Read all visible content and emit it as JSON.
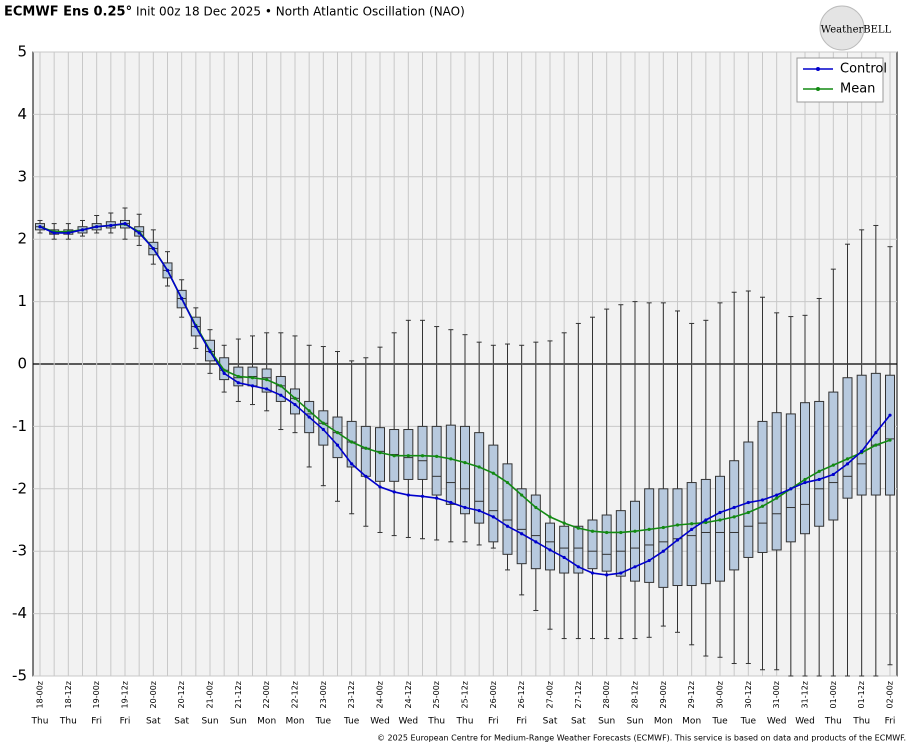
{
  "chart_data": {
    "type": "boxplot-lines",
    "title": "ECMWF Ens 0.25°",
    "subtitle": "Init 00z 18 Dec 2025 • North Atlantic Oscillation (NAO)",
    "logo": "WeatherBELL",
    "footer": "© 2025 European Centre for Medium-Range Weather Forecasts (ECMWF). This service is based on data and products of the ECMWF.",
    "categories": [
      "18-00z",
      null,
      "18-12z",
      null,
      "19-00z",
      null,
      "19-12z",
      null,
      "20-00z",
      null,
      "20-12z",
      null,
      "21-00z",
      null,
      "21-12z",
      null,
      "22-00z",
      null,
      "22-12z",
      null,
      "23-00z",
      null,
      "23-12z",
      null,
      "24-00z",
      null,
      "24-12z",
      null,
      "25-00z",
      null,
      "25-12z",
      null,
      "26-00z",
      null,
      "26-12z",
      null,
      "27-00z",
      null,
      "27-12z",
      null,
      "28-00z",
      null,
      "28-12z",
      null,
      "29-00z",
      null,
      "29-12z",
      null,
      "30-00z",
      null,
      "30-12z",
      null,
      "31-00z",
      null,
      "31-12z",
      null,
      "01-00z",
      null,
      "01-12z",
      null,
      "02-00z"
    ],
    "days": [
      "Thu",
      null,
      "Thu",
      null,
      "Fri",
      null,
      "Fri",
      null,
      "Sat",
      null,
      "Sat",
      null,
      "Sun",
      null,
      "Sun",
      null,
      "Mon",
      null,
      "Mon",
      null,
      "Tue",
      null,
      "Tue",
      null,
      "Wed",
      null,
      "Wed",
      null,
      "Thu",
      null,
      "Thu",
      null,
      "Fri",
      null,
      "Fri",
      null,
      "Sat",
      null,
      "Sat",
      null,
      "Sun",
      null,
      "Sun",
      null,
      "Mon",
      null,
      "Mon",
      null,
      "Tue",
      null,
      "Tue",
      null,
      "Wed",
      null,
      "Wed",
      null,
      "Thu",
      null,
      "Thu",
      null,
      "Fri"
    ],
    "boxes": {
      "color": "#b7c9de",
      "max": [
        2.3,
        2.25,
        2.25,
        2.3,
        2.38,
        2.42,
        2.5,
        2.4,
        2.15,
        1.8,
        1.35,
        0.9,
        0.55,
        0.3,
        0.4,
        0.45,
        0.5,
        0.5,
        0.45,
        0.3,
        0.28,
        0.2,
        0.05,
        0.1,
        0.27,
        0.5,
        0.7,
        0.7,
        0.6,
        0.55,
        0.47,
        0.35,
        0.3,
        0.32,
        0.3,
        0.35,
        0.37,
        0.5,
        0.65,
        0.75,
        0.88,
        0.95,
        1.0,
        0.98,
        0.98,
        0.85,
        0.65,
        0.7,
        0.98,
        1.15,
        1.17,
        1.07,
        0.82,
        0.76,
        0.78,
        1.05,
        1.52,
        1.92,
        2.15,
        2.22,
        1.88
      ],
      "q3": [
        2.25,
        2.15,
        2.15,
        2.2,
        2.25,
        2.28,
        2.3,
        2.2,
        1.95,
        1.62,
        1.18,
        0.75,
        0.38,
        0.1,
        -0.05,
        -0.05,
        -0.08,
        -0.2,
        -0.4,
        -0.6,
        -0.75,
        -0.85,
        -0.92,
        -1.0,
        -1.02,
        -1.05,
        -1.05,
        -1.0,
        -1.0,
        -0.98,
        -1.0,
        -1.1,
        -1.3,
        -1.6,
        -2.0,
        -2.1,
        -2.55,
        -2.6,
        -2.6,
        -2.5,
        -2.42,
        -2.35,
        -2.2,
        -2.0,
        -2.0,
        -2.0,
        -1.9,
        -1.85,
        -1.8,
        -1.55,
        -1.25,
        -0.92,
        -0.78,
        -0.8,
        -0.62,
        -0.6,
        -0.45,
        -0.22,
        -0.18,
        -0.15,
        -0.18
      ],
      "median": [
        2.2,
        2.1,
        2.12,
        2.15,
        2.2,
        2.22,
        2.25,
        2.12,
        1.85,
        1.5,
        1.05,
        0.6,
        0.2,
        -0.1,
        -0.22,
        -0.2,
        -0.22,
        -0.35,
        -0.55,
        -0.8,
        -0.95,
        -1.1,
        -1.25,
        -1.35,
        -1.4,
        -1.45,
        -1.5,
        -1.55,
        -1.8,
        -1.9,
        -2.0,
        -2.2,
        -2.35,
        -2.5,
        -2.65,
        -2.75,
        -2.85,
        -2.95,
        -2.95,
        -3.0,
        -3.05,
        -3.0,
        -2.95,
        -2.9,
        -2.85,
        -2.8,
        -2.75,
        -2.7,
        -2.7,
        -2.7,
        -2.6,
        -2.55,
        -2.4,
        -2.3,
        -2.25,
        -2.0,
        -1.9,
        -1.8,
        -1.6,
        -1.3,
        -1.2
      ],
      "q1": [
        2.15,
        2.08,
        2.08,
        2.1,
        2.15,
        2.18,
        2.18,
        2.05,
        1.75,
        1.38,
        0.9,
        0.45,
        0.05,
        -0.25,
        -0.35,
        -0.35,
        -0.45,
        -0.6,
        -0.8,
        -1.1,
        -1.3,
        -1.5,
        -1.65,
        -1.8,
        -1.88,
        -1.88,
        -1.85,
        -1.85,
        -2.1,
        -2.25,
        -2.4,
        -2.55,
        -2.85,
        -3.05,
        -3.2,
        -3.28,
        -3.3,
        -3.35,
        -3.35,
        -3.28,
        -3.32,
        -3.4,
        -3.48,
        -3.5,
        -3.58,
        -3.55,
        -3.55,
        -3.52,
        -3.48,
        -3.3,
        -3.1,
        -3.02,
        -2.98,
        -2.85,
        -2.72,
        -2.6,
        -2.5,
        -2.15,
        -2.1,
        -2.1,
        -2.1
      ],
      "min": [
        2.1,
        2.0,
        2.0,
        2.05,
        2.1,
        2.1,
        2.0,
        1.9,
        1.6,
        1.25,
        0.75,
        0.25,
        -0.15,
        -0.45,
        -0.6,
        -0.65,
        -0.75,
        -1.05,
        -1.1,
        -1.65,
        -1.95,
        -2.2,
        -2.4,
        -2.6,
        -2.7,
        -2.75,
        -2.78,
        -2.8,
        -2.82,
        -2.85,
        -2.85,
        -2.9,
        -2.95,
        -3.3,
        -3.7,
        -3.95,
        -4.25,
        -4.4,
        -4.4,
        -4.4,
        -4.4,
        -4.4,
        -4.4,
        -4.38,
        -4.2,
        -4.3,
        -4.5,
        -4.68,
        -4.7,
        -4.8,
        -4.8,
        -4.9,
        -4.9,
        -5.0,
        -5.0,
        -5.0,
        -5.0,
        -5.0,
        -5.0,
        -5.0,
        -4.82
      ]
    },
    "series": [
      {
        "name": "Control",
        "color": "#0000cc",
        "values": [
          2.2,
          2.1,
          2.1,
          2.15,
          2.2,
          2.22,
          2.25,
          2.1,
          1.85,
          1.5,
          1.05,
          0.6,
          0.2,
          -0.15,
          -0.3,
          -0.35,
          -0.4,
          -0.5,
          -0.65,
          -0.85,
          -1.05,
          -1.3,
          -1.6,
          -1.8,
          -1.97,
          -2.05,
          -2.1,
          -2.12,
          -2.15,
          -2.22,
          -2.3,
          -2.35,
          -2.45,
          -2.6,
          -2.72,
          -2.85,
          -2.98,
          -3.1,
          -3.25,
          -3.35,
          -3.38,
          -3.35,
          -3.25,
          -3.15,
          -3.0,
          -2.82,
          -2.65,
          -2.5,
          -2.38,
          -2.3,
          -2.22,
          -2.18,
          -2.1,
          -2.0,
          -1.9,
          -1.85,
          -1.77,
          -1.6,
          -1.4,
          -1.1,
          -0.82
        ]
      },
      {
        "name": "Mean",
        "color": "#138a13",
        "values": [
          2.2,
          2.12,
          2.12,
          2.15,
          2.2,
          2.22,
          2.24,
          2.12,
          1.85,
          1.5,
          1.05,
          0.62,
          0.22,
          -0.1,
          -0.2,
          -0.22,
          -0.25,
          -0.35,
          -0.55,
          -0.75,
          -0.95,
          -1.1,
          -1.25,
          -1.35,
          -1.42,
          -1.47,
          -1.47,
          -1.47,
          -1.48,
          -1.52,
          -1.58,
          -1.65,
          -1.75,
          -1.9,
          -2.1,
          -2.3,
          -2.45,
          -2.55,
          -2.63,
          -2.68,
          -2.7,
          -2.7,
          -2.68,
          -2.65,
          -2.62,
          -2.58,
          -2.56,
          -2.54,
          -2.5,
          -2.45,
          -2.38,
          -2.28,
          -2.15,
          -2.0,
          -1.85,
          -1.72,
          -1.62,
          -1.52,
          -1.42,
          -1.3,
          -1.22
        ]
      }
    ],
    "ylim": [
      -5,
      5
    ],
    "yticks": [
      -5,
      -4,
      -3,
      -2,
      -1,
      0,
      1,
      2,
      3,
      4,
      5
    ],
    "grid": true,
    "legend": "top-right"
  }
}
